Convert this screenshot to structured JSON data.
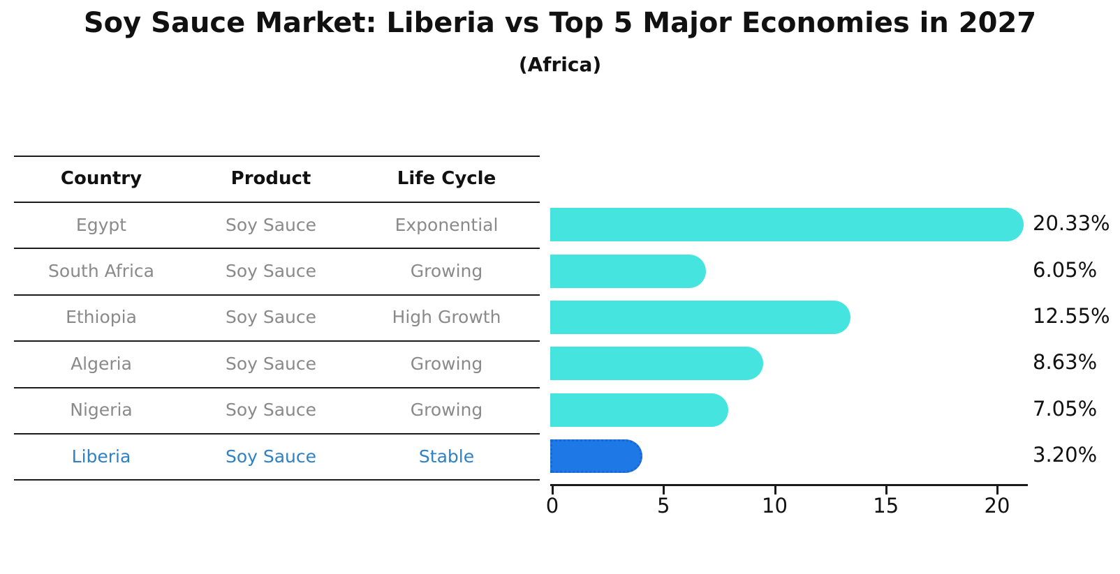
{
  "title": "Soy Sauce Market: Liberia vs Top 5 Major Economies in 2027",
  "subtitle": "(Africa)",
  "table": {
    "headers": [
      "Country",
      "Product",
      "Life Cycle"
    ],
    "rows": [
      {
        "country": "Egypt",
        "product": "Soy Sauce",
        "life_cycle": "Exponential",
        "highlighted": false
      },
      {
        "country": "South Africa",
        "product": "Soy Sauce",
        "life_cycle": "Growing",
        "highlighted": false
      },
      {
        "country": "Ethiopia",
        "product": "Soy Sauce",
        "life_cycle": "High Growth",
        "highlighted": false
      },
      {
        "country": "Algeria",
        "product": "Soy Sauce",
        "life_cycle": "Growing",
        "highlighted": false
      },
      {
        "country": "Nigeria",
        "product": "Soy Sauce",
        "life_cycle": "Growing",
        "highlighted": false
      },
      {
        "country": "Liberia",
        "product": "Soy Sauce",
        "life_cycle": "Stable",
        "highlighted": true
      }
    ]
  },
  "chart_data": {
    "type": "bar",
    "orientation": "horizontal",
    "title": "Soy Sauce Market: Liberia vs Top 5 Major Economies in 2027",
    "subtitle": "(Africa)",
    "categories": [
      "Egypt",
      "South Africa",
      "Ethiopia",
      "Algeria",
      "Nigeria",
      "Liberia"
    ],
    "values": [
      20.33,
      6.05,
      12.55,
      8.63,
      7.05,
      3.2
    ],
    "value_labels": [
      "20.33%",
      "6.05%",
      "12.55%",
      "8.63%",
      "7.05%",
      "3.20%"
    ],
    "xlabel": "",
    "ylabel": "",
    "xlim": [
      0,
      21.5
    ],
    "xticks": [
      0,
      5,
      10,
      15,
      20
    ],
    "xtick_labels": [
      "0",
      "5",
      "10",
      "15",
      "20"
    ],
    "grid": false,
    "legend": "none",
    "highlight_index": 5,
    "bar_color": "#45e4de",
    "highlight_bar_color": "#1e78e6",
    "highlight_border_color": "#1a67d2",
    "highlight_text_color": "#2f81c6"
  },
  "colors": {
    "background": "#ffffff",
    "text": "#111111",
    "muted_text": "#8a8a8a",
    "line": "#1a1a1a"
  }
}
